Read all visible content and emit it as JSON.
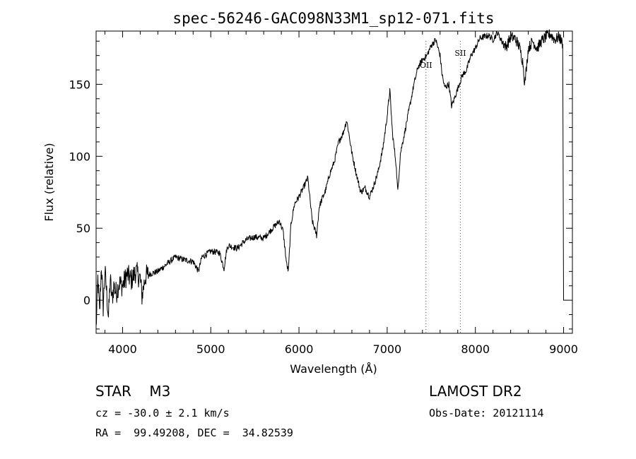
{
  "chart_data": {
    "type": "line",
    "title": "spec-56246-GAC098N33M1_sp12-071.fits",
    "xlabel": "Wavelength (Å)",
    "ylabel": "Flux (relative)",
    "xlim": [
      3700,
      9100
    ],
    "ylim": [
      -23,
      187
    ],
    "x_ticks": [
      4000,
      5000,
      6000,
      7000,
      8000,
      9000
    ],
    "y_ticks": [
      0,
      50,
      100,
      150
    ],
    "grid": false,
    "series": [
      {
        "x": [
          3700,
          3720,
          3740,
          3760,
          3780,
          3800,
          3820,
          3840,
          3860,
          3880,
          3900,
          3930,
          3960,
          4000,
          4050,
          4100,
          4150,
          4200,
          4220,
          4260,
          4300,
          4400,
          4500,
          4600,
          4700,
          4800,
          4860,
          4900,
          5000,
          5100,
          5150,
          5180,
          5200,
          5300,
          5400,
          5500,
          5600,
          5700,
          5780,
          5820,
          5860,
          5880,
          5893,
          5910,
          5950,
          6000,
          6050,
          6100,
          6150,
          6200,
          6230,
          6260,
          6300,
          6350,
          6400,
          6450,
          6500,
          6540,
          6560,
          6600,
          6650,
          6700,
          6750,
          6800,
          6850,
          6900,
          6950,
          7000,
          7030,
          7060,
          7100,
          7120,
          7150,
          7200,
          7250,
          7300,
          7350,
          7400,
          7450,
          7500,
          7550,
          7600,
          7620,
          7650,
          7700,
          7730,
          7750,
          7800,
          7850,
          7900,
          7950,
          8000,
          8050,
          8100,
          8150,
          8200,
          8250,
          8300,
          8350,
          8400,
          8450,
          8500,
          8540,
          8560,
          8600,
          8650,
          8700,
          8750,
          8800,
          8850,
          8900,
          8950,
          8990,
          9000
        ],
        "y": [
          -20,
          15,
          -10,
          25,
          -5,
          20,
          5,
          -12,
          15,
          0,
          10,
          5,
          12,
          10,
          18,
          14,
          20,
          15,
          3,
          17,
          18,
          20,
          25,
          30,
          28,
          27,
          20,
          30,
          34,
          33,
          22,
          35,
          38,
          36,
          42,
          44,
          43,
          50,
          55,
          48,
          25,
          20,
          35,
          53,
          67,
          72,
          78,
          85,
          55,
          45,
          65,
          70,
          76,
          88,
          96,
          110,
          116,
          125,
          118,
          102,
          88,
          75,
          78,
          72,
          80,
          90,
          105,
          128,
          146,
          116,
          95,
          75,
          102,
          117,
          133,
          149,
          162,
          167,
          170,
          177,
          181,
          170,
          158,
          148,
          150,
          135,
          138,
          147,
          156,
          160,
          170,
          175,
          182,
          183,
          184,
          181,
          186,
          180,
          176,
          183,
          182,
          176,
          165,
          150,
          175,
          180,
          175,
          180,
          183,
          185,
          181,
          183,
          178,
          0
        ]
      }
    ],
    "annotations": [
      {
        "label": "OII",
        "x": 7440
      },
      {
        "label": "SII",
        "x": 7830
      }
    ]
  },
  "info": {
    "object_line": "STAR    M3",
    "survey": "LAMOST DR2",
    "velocity": "cz = -30.0 ± 2.1 km/s",
    "obs_date": "Obs-Date: 20121114",
    "coords": "RA =  99.49208, DEC =  34.82539"
  }
}
